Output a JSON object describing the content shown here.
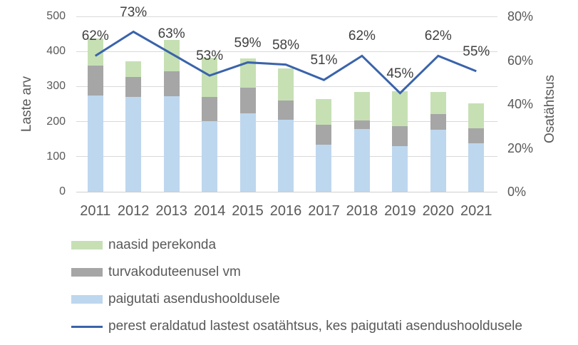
{
  "chart_data": {
    "type": "bar",
    "subtype": "stacked-columns-with-line-overlay",
    "title": "",
    "categories": [
      "2011",
      "2012",
      "2013",
      "2014",
      "2015",
      "2016",
      "2017",
      "2018",
      "2019",
      "2020",
      "2021"
    ],
    "series": [
      {
        "name": "paigutati asendushooldusele",
        "type": "bar",
        "axis": "left",
        "color": "#BDD7EE",
        "values": [
          275,
          270,
          273,
          202,
          224,
          205,
          135,
          178,
          130,
          176,
          138
        ]
      },
      {
        "name": "turvakoduteenusel vm",
        "type": "bar",
        "axis": "left",
        "color": "#A6A6A6",
        "values": [
          84,
          58,
          71,
          69,
          72,
          56,
          57,
          26,
          57,
          45,
          43
        ]
      },
      {
        "name": "naasid perekonda",
        "type": "bar",
        "axis": "left",
        "color": "#C6E0B4",
        "values": [
          79,
          43,
          88,
          111,
          85,
          91,
          73,
          81,
          99,
          63,
          71
        ]
      },
      {
        "name": "perest eraldatud lastest osatähtsus, kes paigutati asendushooldusele",
        "type": "line",
        "axis": "right",
        "color": "#3A63AB",
        "values": [
          62,
          73,
          63,
          53,
          59,
          58,
          51,
          62,
          45,
          62,
          55
        ],
        "labels": [
          "62%",
          "73%",
          "63%",
          "53%",
          "59%",
          "58%",
          "51%",
          "62%",
          "45%",
          "62%",
          "55%"
        ]
      }
    ],
    "stack_order_bottom_to_top": [
      "paigutati asendushooldusele",
      "turvakoduteenusel vm",
      "naasid perekonda"
    ],
    "xlabel": "",
    "ylabel_left": "Laste arv",
    "ylabel_right": "Osatähtsus",
    "ylim_left": [
      0,
      500
    ],
    "ytick_step_left": 100,
    "yticks_left": [
      "0",
      "100",
      "200",
      "300",
      "400",
      "500"
    ],
    "ylim_right": [
      0,
      80
    ],
    "ytick_step_right": 20,
    "yticks_right": [
      "0%",
      "20%",
      "40%",
      "60%",
      "80%"
    ],
    "grid": "horizontal",
    "legend_position": "bottom-left"
  },
  "legend": {
    "items": [
      {
        "label": "naasid perekonda",
        "marker": "box",
        "color": "#C6E0B4"
      },
      {
        "label": "turvakoduteenusel vm",
        "marker": "box",
        "color": "#A6A6A6"
      },
      {
        "label": "paigutati asendushooldusele",
        "marker": "box",
        "color": "#BDD7EE"
      },
      {
        "label": "perest eraldatud lastest osatähtsus, kes paigutati asendushooldusele",
        "marker": "line",
        "color": "#3A63AB"
      }
    ]
  },
  "colors": {
    "background": "#FFFFFF",
    "gridline": "#D9D9D9",
    "axis_line": "#CFCFCF",
    "axis_text": "#595959",
    "data_label_text": "#404040"
  }
}
